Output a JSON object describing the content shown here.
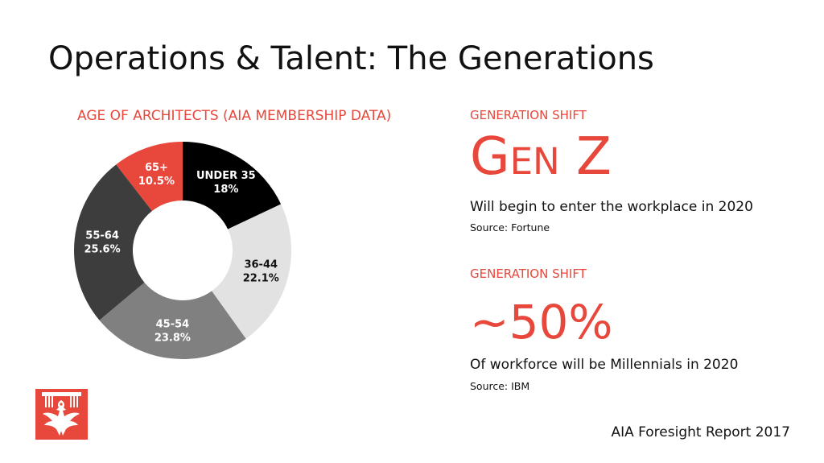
{
  "slide": {
    "title": "Operations & Talent: The Generations",
    "footer": "AIA Foresight Report 2017"
  },
  "chart_data": {
    "type": "pie",
    "title": "AGE OF ARCHITECTS (AIA MEMBERSHIP DATA)",
    "categories": [
      "UNDER 35",
      "36-44",
      "45-54",
      "55-64",
      "65+"
    ],
    "values": [
      18,
      22.1,
      23.8,
      25.6,
      10.5
    ],
    "value_labels": [
      "18%",
      "22.1%",
      "23.8%",
      "25.6%",
      "10.5%"
    ],
    "colors": [
      "#000000",
      "#e2e2e2",
      "#808080",
      "#3d3d3d",
      "#e8473b"
    ],
    "label_colors": [
      "#ffffff",
      "#111111",
      "#ffffff",
      "#ffffff",
      "#ffffff"
    ],
    "donut": true
  },
  "stats": [
    {
      "kicker": "GENERATION SHIFT",
      "headline": "Gen Z",
      "description": "Will begin to enter the workplace in 2020",
      "source": "Source: Fortune"
    },
    {
      "kicker": "GENERATION SHIFT",
      "headline": "~50%",
      "description": "Of workforce will be Millennials in 2020",
      "source": "Source: IBM"
    }
  ],
  "logo": {
    "icon": "aia-eagle-icon",
    "color": "#e8473b"
  }
}
